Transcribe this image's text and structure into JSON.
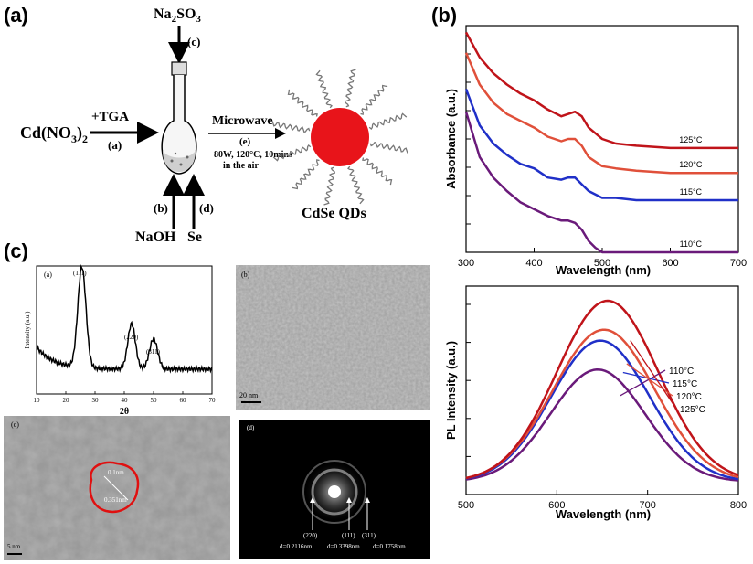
{
  "panels": {
    "a": "(a)",
    "b": "(b)",
    "c": "(c)"
  },
  "scheme": {
    "reactant": "Cd(NO",
    "reactant_sub": "3",
    "reactant_close": ")",
    "reactant_sub2": "2",
    "reagent_tga": "+TGA",
    "step_a": "(a)",
    "reagent_top": "Na",
    "reagent_top_sub": "2",
    "reagent_top_rest": "SO",
    "reagent_top_sub2": "3",
    "step_c": "(c)",
    "step_b": "(b)",
    "step_d": "(d)",
    "naoh": "NaOH",
    "se": "Se",
    "microwave": "Microwave",
    "step_e": "(e)",
    "conditions_1": "80W, 120°C, 10mins",
    "conditions_2": "in the air",
    "product": "CdSe QDs",
    "colors": {
      "qd_core": "#e8141a"
    }
  },
  "xrd": {
    "sublabel": "(a)",
    "ylabel": "Intensity (a.u.)",
    "xlabel": "2θ",
    "xticks": [
      "10",
      "20",
      "30",
      "40",
      "50",
      "60",
      "70"
    ],
    "peaks": [
      "(111)",
      "(220)",
      "(311)"
    ]
  },
  "tem_b": {
    "sublabel": "(b)",
    "scale": "20 nm"
  },
  "hrtem": {
    "sublabel": "(c)",
    "d1": "0.1nm",
    "d2": "0.351nm",
    "scale": "5 nm",
    "circle_color": "#e01010"
  },
  "saed": {
    "sublabel": "(d)",
    "rings": [
      "(220)",
      "(111)",
      "(311)"
    ],
    "d_values": [
      "d=0.2116nm",
      "d=0.3398nm",
      "d=0.1758nm"
    ]
  },
  "chart_data": [
    {
      "type": "line",
      "xlabel": "Wavelength (nm)",
      "ylabel": "Absorbance (a.u.)",
      "xlim": [
        300,
        700
      ],
      "xticks": [
        "300",
        "400",
        "500",
        "600",
        "700"
      ],
      "series": [
        {
          "name": "125°C",
          "color": "#c0141a",
          "x": [
            300,
            320,
            340,
            360,
            380,
            400,
            420,
            440,
            450,
            460,
            470,
            480,
            500,
            520,
            550,
            600,
            650,
            700
          ],
          "y": [
            0.97,
            0.86,
            0.79,
            0.74,
            0.7,
            0.67,
            0.63,
            0.6,
            0.61,
            0.62,
            0.6,
            0.55,
            0.5,
            0.48,
            0.47,
            0.46,
            0.46,
            0.46
          ]
        },
        {
          "name": "120°C",
          "color": "#e0503a",
          "x": [
            300,
            320,
            340,
            360,
            380,
            400,
            420,
            440,
            450,
            460,
            470,
            480,
            500,
            520,
            550,
            600,
            650,
            700
          ],
          "y": [
            0.88,
            0.74,
            0.66,
            0.61,
            0.58,
            0.55,
            0.51,
            0.49,
            0.5,
            0.5,
            0.47,
            0.42,
            0.38,
            0.37,
            0.36,
            0.35,
            0.35,
            0.35
          ]
        },
        {
          "name": "115°C",
          "color": "#2030c8",
          "x": [
            300,
            320,
            340,
            360,
            380,
            400,
            420,
            440,
            450,
            460,
            470,
            480,
            500,
            520,
            550,
            600,
            650,
            700
          ],
          "y": [
            0.72,
            0.56,
            0.48,
            0.43,
            0.39,
            0.37,
            0.33,
            0.32,
            0.33,
            0.33,
            0.3,
            0.27,
            0.24,
            0.24,
            0.23,
            0.23,
            0.23,
            0.23
          ]
        },
        {
          "name": "110°C",
          "color": "#6a1a7a",
          "x": [
            300,
            320,
            340,
            360,
            380,
            400,
            420,
            440,
            450,
            460,
            470,
            480,
            490,
            500,
            520,
            550,
            600,
            650,
            700
          ],
          "y": [
            0.62,
            0.42,
            0.33,
            0.27,
            0.22,
            0.19,
            0.16,
            0.14,
            0.14,
            0.13,
            0.1,
            0.05,
            0.02,
            0.0,
            0.0,
            0.0,
            0.0,
            0.0,
            0.0
          ]
        }
      ]
    },
    {
      "type": "line",
      "xlabel": "Wavelength (nm)",
      "ylabel": "PL Intensity (a.u.)",
      "xlim": [
        500,
        800
      ],
      "xticks": [
        "500",
        "600",
        "700",
        "800"
      ],
      "series": [
        {
          "name": "110°C",
          "color": "#6a1a7a",
          "center": 645,
          "height": 0.62,
          "width": 52
        },
        {
          "name": "115°C",
          "color": "#2030c8",
          "center": 648,
          "height": 0.78,
          "width": 54
        },
        {
          "name": "120°C",
          "color": "#e0503a",
          "center": 652,
          "height": 0.84,
          "width": 56
        },
        {
          "name": "125°C",
          "color": "#c0141a",
          "center": 656,
          "height": 1.0,
          "width": 56
        }
      ]
    }
  ]
}
